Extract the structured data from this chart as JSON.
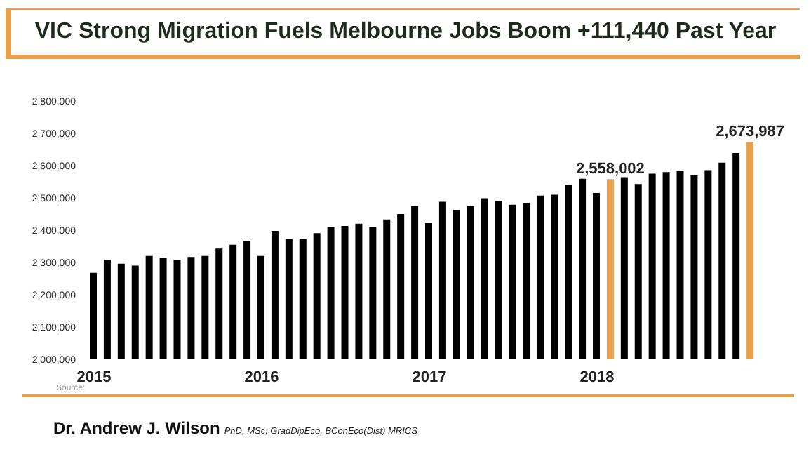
{
  "chart_data": {
    "type": "bar",
    "title": "VIC Strong Migration Fuels Melbourne Jobs Boom +111,440 Past Year",
    "categories": [
      "2015",
      null,
      null,
      null,
      null,
      null,
      null,
      null,
      null,
      null,
      null,
      null,
      "2016",
      null,
      null,
      null,
      null,
      null,
      null,
      null,
      null,
      null,
      null,
      null,
      "2017",
      null,
      null,
      null,
      null,
      null,
      null,
      null,
      null,
      null,
      null,
      null,
      "2018",
      null,
      null,
      null,
      null,
      null,
      null,
      null,
      null,
      null,
      null,
      null
    ],
    "values": [
      2268000,
      2308000,
      2296000,
      2290000,
      2320000,
      2314000,
      2308000,
      2317000,
      2320000,
      2343000,
      2355000,
      2367000,
      2320000,
      2398000,
      2373000,
      2373000,
      2391000,
      2410000,
      2413000,
      2420000,
      2410000,
      2433000,
      2450000,
      2475000,
      2422000,
      2488000,
      2463000,
      2475000,
      2499000,
      2491000,
      2479000,
      2485000,
      2507000,
      2510000,
      2541000,
      2559000,
      2515000,
      2558002,
      2564000,
      2543000,
      2575000,
      2580000,
      2583000,
      2570000,
      2586000,
      2609000,
      2639000,
      2673987
    ],
    "colors": [
      "#000000",
      "#000000",
      "#000000",
      "#000000",
      "#000000",
      "#000000",
      "#000000",
      "#000000",
      "#000000",
      "#000000",
      "#000000",
      "#000000",
      "#000000",
      "#000000",
      "#000000",
      "#000000",
      "#000000",
      "#000000",
      "#000000",
      "#000000",
      "#000000",
      "#000000",
      "#000000",
      "#000000",
      "#000000",
      "#000000",
      "#000000",
      "#000000",
      "#000000",
      "#000000",
      "#000000",
      "#000000",
      "#000000",
      "#000000",
      "#000000",
      "#000000",
      "#000000",
      "#e8a04c",
      "#000000",
      "#000000",
      "#000000",
      "#000000",
      "#000000",
      "#000000",
      "#000000",
      "#000000",
      "#000000",
      "#e8a04c"
    ],
    "value_labels": [
      null,
      null,
      null,
      null,
      null,
      null,
      null,
      null,
      null,
      null,
      null,
      null,
      null,
      null,
      null,
      null,
      null,
      null,
      null,
      null,
      null,
      null,
      null,
      null,
      null,
      null,
      null,
      null,
      null,
      null,
      null,
      null,
      null,
      null,
      null,
      null,
      null,
      "2,558,002",
      null,
      null,
      null,
      null,
      null,
      null,
      null,
      null,
      null,
      "2,673,987"
    ],
    "ylim": [
      2000000,
      2800000
    ],
    "yticks": [
      {
        "value": 2000000,
        "label": "2,000,000"
      },
      {
        "value": 2100000,
        "label": "2,100,000"
      },
      {
        "value": 2200000,
        "label": "2,200,000"
      },
      {
        "value": 2300000,
        "label": "2,300,000"
      },
      {
        "value": 2400000,
        "label": "2,400,000"
      },
      {
        "value": 2500000,
        "label": "2,500,000"
      },
      {
        "value": 2600000,
        "label": "2,600,000"
      },
      {
        "value": 2700000,
        "label": "2,700,000"
      },
      {
        "value": 2800000,
        "label": "2,800,000"
      }
    ],
    "grid": false,
    "legend": false,
    "annotations": [
      "Source:",
      "Dr. Andrew J. Wilson",
      "PhD, MSc, GradDipEco, BConEco(Dist) MRICS"
    ]
  }
}
